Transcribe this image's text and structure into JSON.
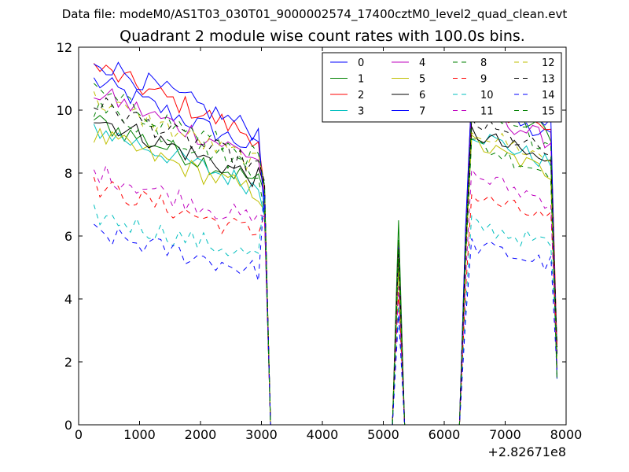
{
  "header": {
    "suptitle": "Data file: modeM0/AS1T03_030T01_9000002574_17400cztM0_level2_quad_clean.evt"
  },
  "chart_data": {
    "type": "line",
    "title": "Quadrant 2 module wise count rates with 100.0s bins.",
    "xlabel": "",
    "ylabel": "",
    "x_offset_label": "+2.82671e8",
    "xlim": [
      0,
      8000
    ],
    "ylim": [
      0,
      12
    ],
    "xticks": [
      "0",
      "1000",
      "2000",
      "3000",
      "4000",
      "5000",
      "6000",
      "7000",
      "8000"
    ],
    "yticks": [
      "0",
      "2",
      "4",
      "6",
      "8",
      "10",
      "12"
    ],
    "grid": false,
    "legend_location": "upper right",
    "legend_columns": 4,
    "series": [
      {
        "name": "0",
        "color": "#0000ff",
        "dash": "solid",
        "level1": 9.5,
        "level2": 9.1,
        "peak": 5.2
      },
      {
        "name": "1",
        "color": "#008000",
        "dash": "solid",
        "level1": 8.4,
        "level2": 9.3,
        "peak": 6.5
      },
      {
        "name": "2",
        "color": "#ff0000",
        "dash": "solid",
        "level1": 9.9,
        "level2": 9.3,
        "peak": 5.8
      },
      {
        "name": "3",
        "color": "#00bfbf",
        "dash": "solid",
        "level1": 8.2,
        "level2": 8.3,
        "peak": 5.4
      },
      {
        "name": "4",
        "color": "#bf00bf",
        "dash": "solid",
        "level1": 9.2,
        "level2": 9.0,
        "peak": 5.6
      },
      {
        "name": "5",
        "color": "#bfbf00",
        "dash": "solid",
        "level1": 8.0,
        "level2": 8.0,
        "peak": 5.0
      },
      {
        "name": "6",
        "color": "#000000",
        "dash": "solid",
        "level1": 8.5,
        "level2": 8.3,
        "peak": 5.5
      },
      {
        "name": "7",
        "color": "#0000ff",
        "dash": "solid",
        "level1": 10.1,
        "level2": 9.6,
        "peak": 5.7
      },
      {
        "name": "8",
        "color": "#008000",
        "dash": "dashed",
        "level1": 8.8,
        "level2": 8.0,
        "peak": 5.3
      },
      {
        "name": "9",
        "color": "#ff0000",
        "dash": "dashed",
        "level1": 6.6,
        "level2": 6.5,
        "peak": 4.2
      },
      {
        "name": "10",
        "color": "#00bfbf",
        "dash": "dashed",
        "level1": 5.8,
        "level2": 5.7,
        "peak": 3.8
      },
      {
        "name": "11",
        "color": "#bf00bf",
        "dash": "dashed",
        "level1": 7.0,
        "level2": 7.1,
        "peak": 4.4
      },
      {
        "name": "12",
        "color": "#bfbf00",
        "dash": "dashed",
        "level1": 9.0,
        "level2": 8.4,
        "peak": 5.4
      },
      {
        "name": "13",
        "color": "#000000",
        "dash": "dashed",
        "level1": 8.9,
        "level2": 8.6,
        "peak": 5.6
      },
      {
        "name": "14",
        "color": "#0000ff",
        "dash": "dashed",
        "level1": 5.3,
        "level2": 5.1,
        "peak": 3.5
      },
      {
        "name": "15",
        "color": "#008000",
        "dash": "dashed",
        "level1": 9.2,
        "level2": 8.9,
        "peak": 5.9
      }
    ]
  }
}
